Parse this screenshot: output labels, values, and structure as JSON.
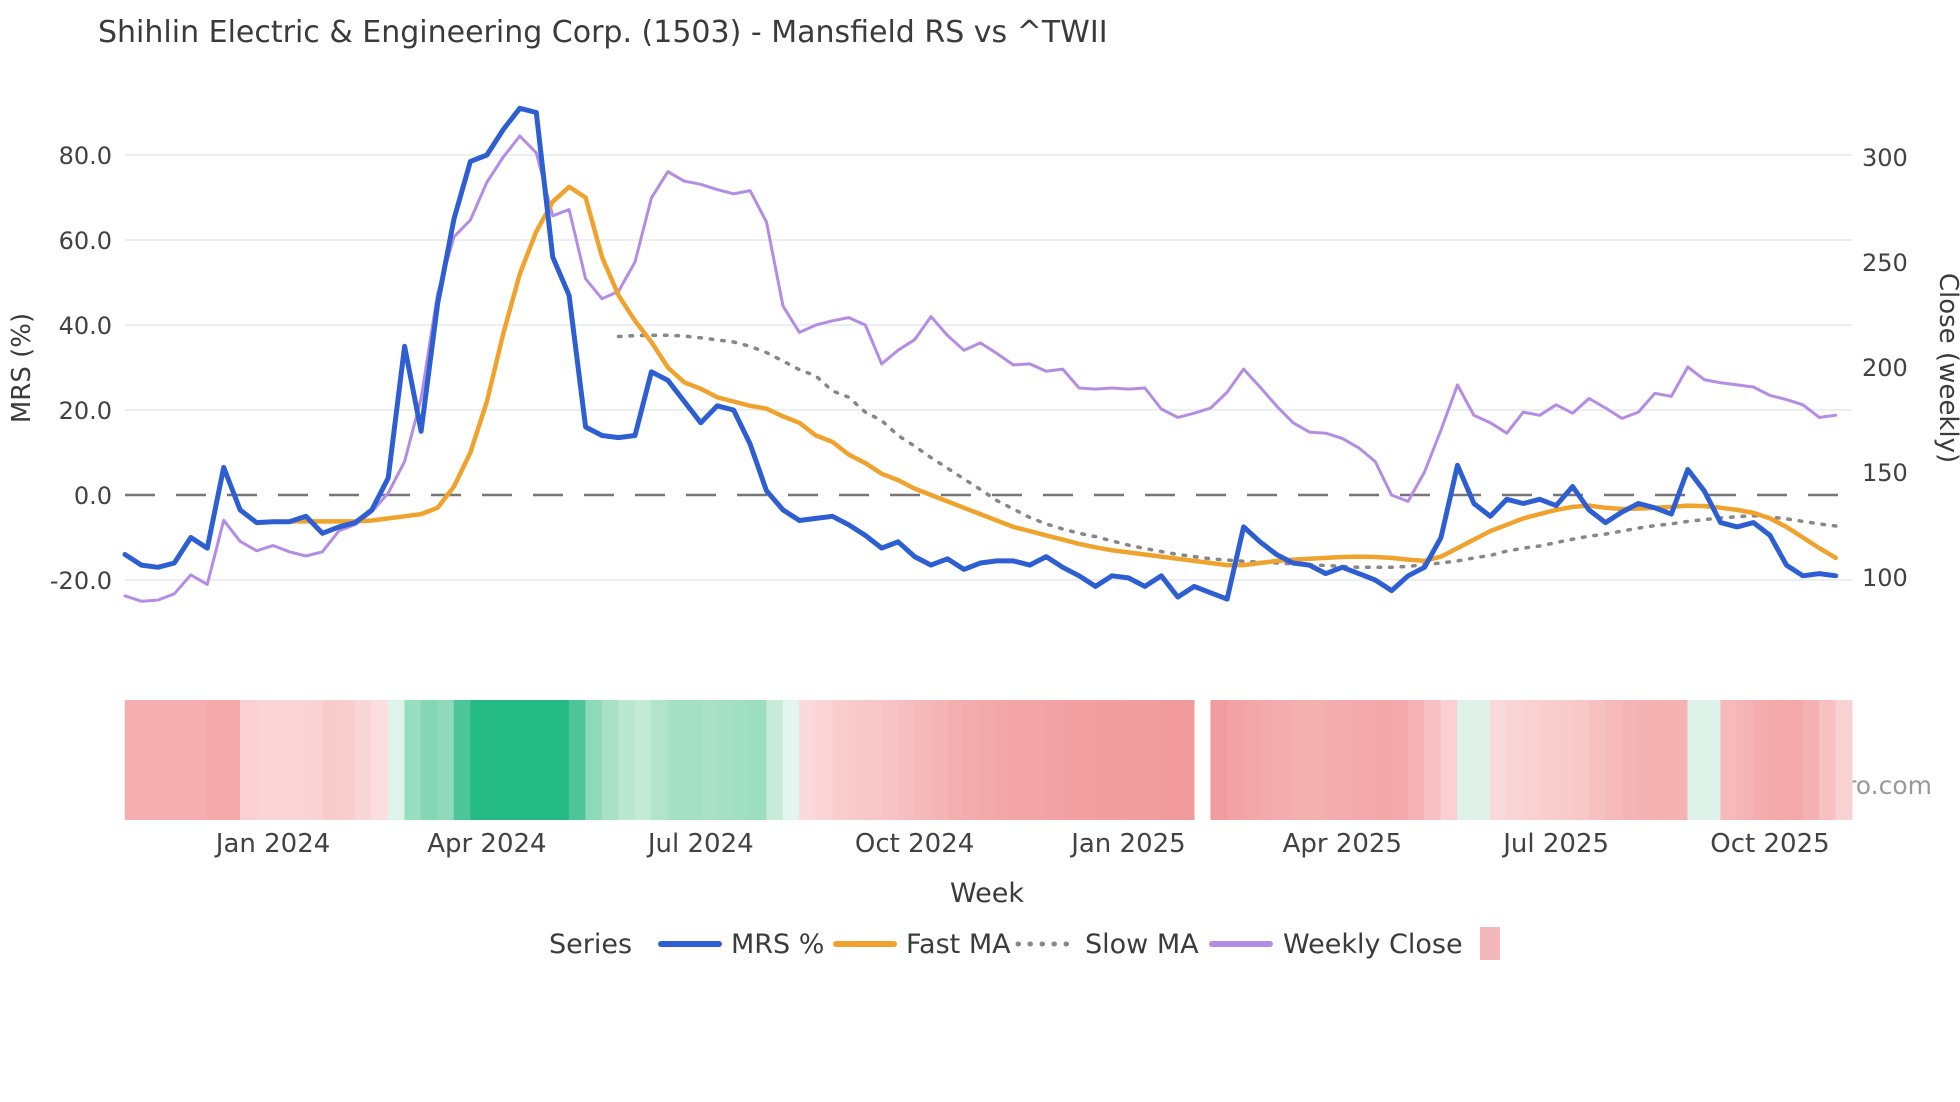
{
  "title": "Shihlin Electric & Engineering Corp. (1503) - Mansfield RS vs ^TWII",
  "source": "source: sharemaestro.com",
  "axes": {
    "left_label": "MRS (%)",
    "right_label": "Close (weekly)",
    "x_label": "Week",
    "left_ticks": [
      {
        "v": 80,
        "label": "80.0"
      },
      {
        "v": 60,
        "label": "60.0"
      },
      {
        "v": 40,
        "label": "40.0"
      },
      {
        "v": 20,
        "label": "20.0"
      },
      {
        "v": 0,
        "label": "0.0"
      },
      {
        "v": -20,
        "label": "-20.0"
      }
    ],
    "right_ticks": [
      {
        "v": 300,
        "label": "300"
      },
      {
        "v": 250,
        "label": "250"
      },
      {
        "v": 200,
        "label": "200"
      },
      {
        "v": 150,
        "label": "150"
      },
      {
        "v": 100,
        "label": "100"
      }
    ],
    "x_ticks": [
      {
        "week": 9,
        "label": "Jan 2024"
      },
      {
        "week": 22,
        "label": "Apr 2024"
      },
      {
        "week": 35,
        "label": "Jul 2024"
      },
      {
        "week": 48,
        "label": "Oct 2024"
      },
      {
        "week": 61,
        "label": "Jan 2025"
      },
      {
        "week": 74,
        "label": "Apr 2025"
      },
      {
        "week": 87,
        "label": "Jul 2025"
      },
      {
        "week": 100,
        "label": "Oct 2025"
      }
    ]
  },
  "legend": {
    "title": "Series",
    "items": [
      {
        "name": "MRS %",
        "color": "#2d5fd3",
        "style": "solid"
      },
      {
        "name": "Fast MA",
        "color": "#f0a32c",
        "style": "solid"
      },
      {
        "name": "Slow MA",
        "color": "#878787",
        "style": "dotted"
      },
      {
        "name": "Weekly Close",
        "color": "#b58ce4",
        "style": "solid"
      }
    ],
    "heatmap_swatch_color": "#f5b8ba"
  },
  "colors": {
    "grid": "#e9edf1",
    "zero_line": "#767676",
    "text": "#3b3b3b",
    "tick_text": "#424242",
    "source_text": "#999999",
    "heatmap_strong_green": "#24bb87",
    "heatmap_strong_red": "#f09a9c"
  },
  "chart_data": {
    "type": "line",
    "title": "Shihlin Electric & Engineering Corp. (1503) - Mansfield RS vs ^TWII",
    "xlabel": "Week",
    "ylabel_left": "MRS (%)",
    "ylabel_right": "Close (weekly)",
    "x_unit": "week_index",
    "weeks": 105,
    "gap_week_index": 65,
    "left_axis_ticks": [
      80,
      60,
      40,
      20,
      0,
      -20
    ],
    "right_axis_ticks": [
      300,
      250,
      200,
      150,
      100
    ],
    "grid": "horizontal-only",
    "legend_position": "bottom",
    "series": [
      {
        "name": "Weekly Close",
        "axis": "right",
        "color": "#b58ce4",
        "style": "solid",
        "width": 3,
        "values": [
          91,
          88.5,
          89,
          92,
          101,
          96.5,
          127,
          117,
          112.5,
          115,
          112,
          110,
          112,
          122,
          125,
          131,
          140,
          155,
          185,
          235,
          262,
          270,
          288,
          300,
          310,
          302,
          272,
          275,
          242,
          232.5,
          236,
          250,
          280.5,
          293,
          288.5,
          287,
          284.5,
          282.5,
          284,
          269,
          229,
          216.5,
          220,
          222,
          223.5,
          220,
          201.5,
          208,
          213,
          224,
          215,
          208,
          211.5,
          206.5,
          201,
          201.5,
          198,
          199,
          190,
          189.5,
          190,
          189.5,
          190,
          180,
          176,
          178,
          180.5,
          188,
          199,
          190.5,
          181.5,
          173.5,
          169,
          168.5,
          166,
          161.5,
          155,
          139,
          136,
          150,
          170,
          191.5,
          177,
          173.5,
          168.5,
          178.5,
          177,
          182,
          178,
          185,
          180.5,
          175.5,
          178.5,
          187.5,
          186,
          200,
          194,
          192.5,
          191.5,
          190.5,
          186.5,
          184.5,
          182,
          176,
          177
        ]
      },
      {
        "name": "Slow MA",
        "axis": "left",
        "color": "#878787",
        "style": "dotted",
        "width": 3.5,
        "values": [
          null,
          null,
          null,
          null,
          null,
          null,
          null,
          null,
          null,
          null,
          null,
          null,
          null,
          null,
          null,
          null,
          null,
          null,
          null,
          null,
          null,
          null,
          null,
          null,
          null,
          null,
          null,
          null,
          null,
          null,
          37.3,
          37.5,
          37.6,
          37.6,
          37.4,
          37,
          36.5,
          36,
          35,
          33.5,
          31.5,
          29.5,
          28,
          24.5,
          23,
          19.5,
          17.5,
          14,
          11.5,
          8.8,
          6.3,
          3.8,
          1.3,
          -1.3,
          -3.3,
          -5.3,
          -6.8,
          -8,
          -9,
          -9.8,
          -10.8,
          -11.8,
          -12.6,
          -13.3,
          -14,
          -14.5,
          -15,
          -15.3,
          -15.6,
          -15.8,
          -16,
          -16.2,
          -16.4,
          -16.6,
          -16.8,
          -17,
          -17,
          -17,
          -16.8,
          -16.4,
          -16,
          -15.5,
          -14.8,
          -14.2,
          -13.2,
          -12.5,
          -12,
          -11.2,
          -10.4,
          -9.7,
          -9.2,
          -8.5,
          -7.8,
          -7.2,
          -6.8,
          -6.2,
          -5.8,
          -5.4,
          -5.1,
          -4.9,
          -5.2,
          -5.6,
          -6.2,
          -6.8,
          -7.3
        ]
      },
      {
        "name": "Fast MA",
        "axis": "left",
        "color": "#f0a32c",
        "style": "solid",
        "width": 4.5,
        "values": [
          null,
          null,
          null,
          null,
          null,
          null,
          null,
          null,
          null,
          null,
          -6.2,
          -6.2,
          -6.2,
          -6.2,
          -6.2,
          -6,
          -5.5,
          -5,
          -4.5,
          -3,
          2,
          10,
          22,
          38,
          52,
          62,
          69,
          72.5,
          70,
          56,
          47,
          41,
          36,
          30,
          26.5,
          25,
          23,
          22,
          21,
          20.3,
          18.5,
          17,
          14,
          12.5,
          9.5,
          7.5,
          5,
          3.5,
          1.5,
          0,
          -1.5,
          -3,
          -4.5,
          -6,
          -7.5,
          -8.5,
          -9.5,
          -10.5,
          -11.5,
          -12.3,
          -13,
          -13.5,
          -14,
          -14.5,
          -15,
          -15.5,
          -16,
          -16.5,
          -16.5,
          -16,
          -15.5,
          -15.2,
          -15,
          -14.8,
          -14.6,
          -14.5,
          -14.6,
          -14.8,
          -15.2,
          -15.5,
          -14.5,
          -12.5,
          -10.5,
          -8.5,
          -7,
          -5.5,
          -4.5,
          -3.5,
          -2.8,
          -2.5,
          -3,
          -3.3,
          -3.2,
          -3,
          -2.8,
          -2.5,
          -2.6,
          -3,
          -3.5,
          -4.2,
          -5.5,
          -7.5,
          -10,
          -12.5,
          -14.8
        ]
      },
      {
        "name": "MRS %",
        "axis": "left",
        "color": "#2d5fd3",
        "style": "solid",
        "width": 5,
        "values": [
          -14,
          -16.5,
          -17,
          -16,
          -10,
          -12.5,
          6.5,
          -3.5,
          -6.5,
          -6.3,
          -6.3,
          -5,
          -9,
          -7.5,
          -6.5,
          -3.5,
          4,
          35,
          15,
          45,
          65,
          78.5,
          80,
          86,
          91,
          90,
          56,
          47,
          16,
          14,
          13.5,
          14,
          29,
          27,
          22,
          17,
          21,
          20,
          12,
          1,
          -3.5,
          -6,
          -5.5,
          -5,
          -7,
          -9.5,
          -12.5,
          -11,
          -14.5,
          -16.5,
          -15,
          -17.5,
          -16,
          -15.5,
          -15.5,
          -16.5,
          -14.5,
          -17,
          -19,
          -21.5,
          -19,
          -19.5,
          -21.5,
          -19,
          -24,
          -21.5,
          -23,
          -24.5,
          -7.5,
          -11,
          -14,
          -16,
          -16.5,
          -18.5,
          -17,
          -18.5,
          -20,
          -22.5,
          -19,
          -17,
          -10,
          7,
          -2,
          -5,
          -1,
          -2,
          -1,
          -2.5,
          2,
          -3.5,
          -6.5,
          -4,
          -2,
          -3,
          -4.5,
          6,
          1,
          -6.5,
          -7.5,
          -6.5,
          -9.5,
          -16.5,
          -19,
          -18.5,
          -19
        ]
      }
    ],
    "heatmap": {
      "description": "weekly relative-strength color strip below chart",
      "colors": [
        "#f6aeb0",
        "#f6aeb0",
        "#f6aeb0",
        "#f6aeb0",
        "#f6aeb0",
        "#f4a8aa",
        "#f4a8aa",
        "#fad0d2",
        "#fbd3d5",
        "#fbd5d6",
        "#fbd5d6",
        "#fad2d3",
        "#f9cbcd",
        "#f9cdce",
        "#fad5d6",
        "#fbdfe0",
        "#def3ea",
        "#98dec0",
        "#84d7b6",
        "#8fd9bb",
        "#4ec59b",
        "#24bb87",
        "#24bb87",
        "#24bb87",
        "#24bb87",
        "#24bb87",
        "#24bb87",
        "#4cc59a",
        "#8fd9bb",
        "#a8e1c8",
        "#b9e7d2",
        "#c2ead6",
        "#b0e4cc",
        "#a5e0c6",
        "#a5e0c6",
        "#a8e1c8",
        "#a5e0c6",
        "#a0dfc4",
        "#9cdec2",
        "#c6ebd9",
        "#e3f5ee",
        "#fcd9da",
        "#fbd5d6",
        "#f9cdce",
        "#f8c9cb",
        "#f8c7c9",
        "#f7c4c6",
        "#f6bec0",
        "#f6b9bb",
        "#f5b4b6",
        "#f4aeb0",
        "#f4abad",
        "#f3a8aa",
        "#f3a6a8",
        "#f3a4a6",
        "#f3a4a6",
        "#f2a2a4",
        "#f2a0a2",
        "#f2a0a2",
        "#f19ea0",
        "#f19ea0",
        "#f19c9e",
        "#f19c9e",
        "#f09a9c",
        "#f09a9c",
        null,
        "#f19c9e",
        "#f2a2a4",
        "#f3a6a8",
        "#f4aaac",
        "#f4adaf",
        "#f4afb1",
        "#f4afb1",
        "#f4adaf",
        "#f4abad",
        "#f3a9ab",
        "#f3a7a9",
        "#f3a9ab",
        "#f5b3b5",
        "#f7c1c3",
        "#fad0d2",
        "#def2e9",
        "#def2e9",
        "#fbd8d9",
        "#fad3d4",
        "#fad0d1",
        "#f9cdce",
        "#f9cbcc",
        "#f8c8c9",
        "#f7c1c2",
        "#f6babb",
        "#f5b4b5",
        "#f5b2b3",
        "#f5b0b1",
        "#f5b2b3",
        "#def2e9",
        "#def2e9",
        "#f6babb",
        "#f5b4b5",
        "#f4acae",
        "#f4aaab",
        "#f3a8a9",
        "#f5b0b1",
        "#f7c0c1",
        "#fad2d3"
      ]
    }
  }
}
